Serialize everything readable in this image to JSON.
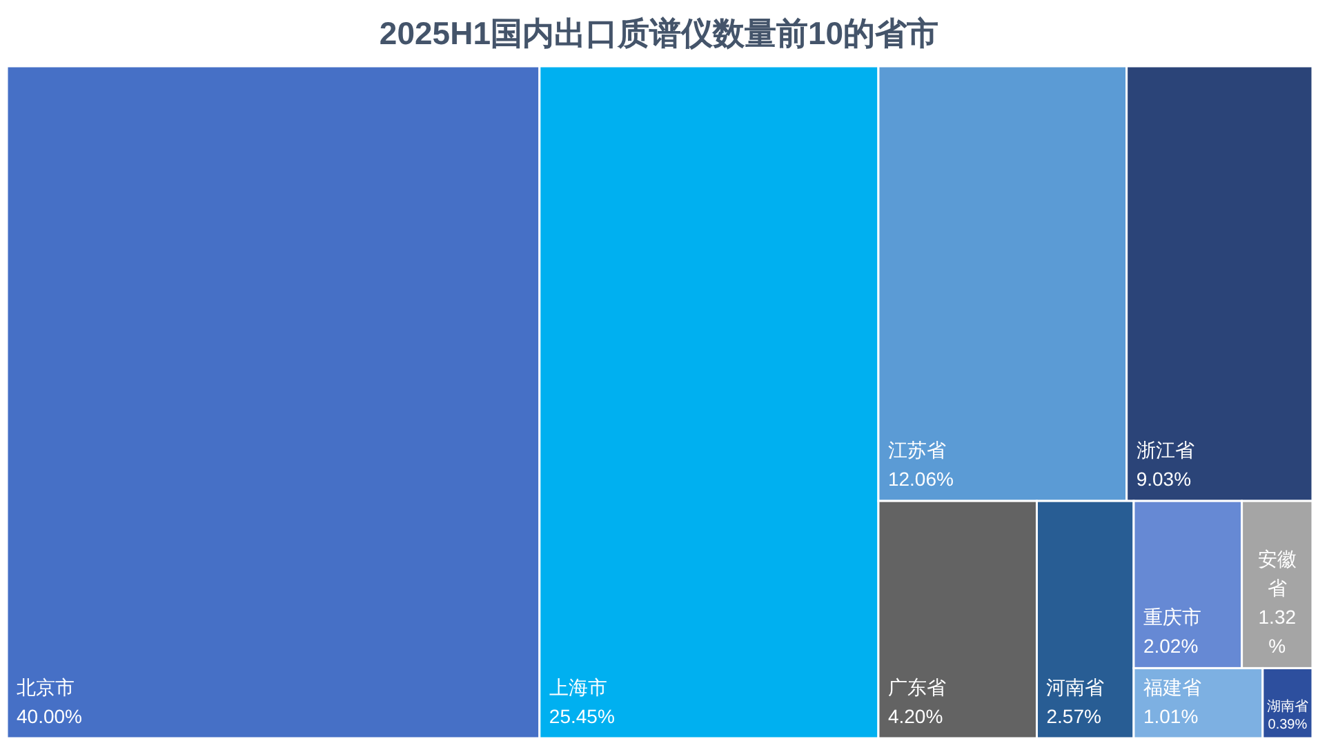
{
  "chart_data": {
    "type": "other",
    "title": "2025H1国内出口质谱仪数量前10的省市",
    "categories": [
      "北京市",
      "上海市",
      "江苏省",
      "浙江省",
      "广东省",
      "河南省",
      "重庆市",
      "安徽省",
      "福建省",
      "湖南省"
    ],
    "values": [
      40.0,
      25.45,
      12.06,
      9.03,
      4.2,
      2.57,
      2.02,
      1.32,
      1.01,
      0.39
    ],
    "value_labels": [
      "40.00%",
      "25.45%",
      "12.06%",
      "9.03%",
      "4.20%",
      "2.57%",
      "2.02%",
      "1.32%",
      "1.01%",
      "0.39%"
    ],
    "colors": [
      "#4670c6",
      "#00b0f0",
      "#5b9bd5",
      "#2b4478",
      "#636363",
      "#285d94",
      "#6689d4",
      "#a5a5a5",
      "#7db0e2",
      "#2d4f9e"
    ]
  }
}
